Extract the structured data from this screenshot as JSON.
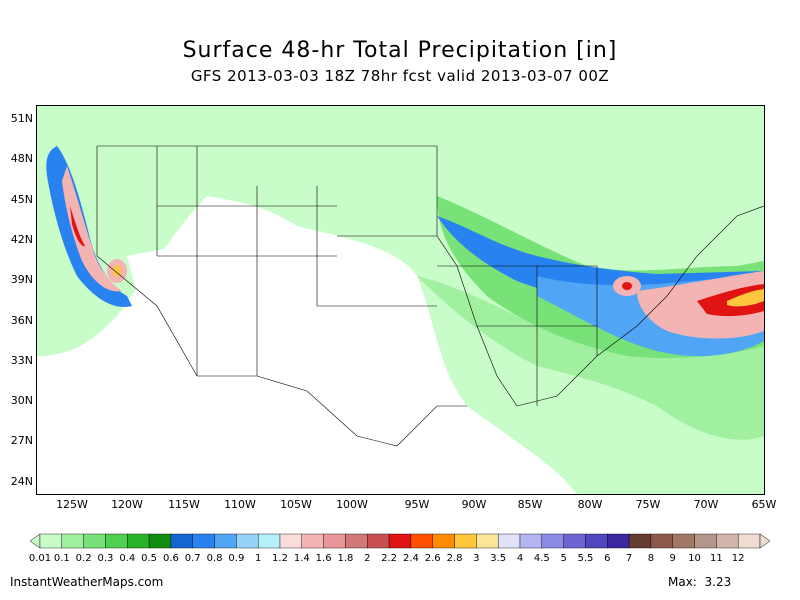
{
  "title": "Surface 48-hr Total Precipitation [in]",
  "subtitle": "GFS 2013-03-03 18Z 78hr fcst valid 2013-03-07 00Z",
  "lat_labels": [
    "51N",
    "48N",
    "45N",
    "42N",
    "39N",
    "36N",
    "33N",
    "30N",
    "27N",
    "24N"
  ],
  "lon_labels": [
    "125W",
    "120W",
    "115W",
    "110W",
    "105W",
    "100W",
    "95W",
    "90W",
    "85W",
    "80W",
    "75W",
    "70W",
    "65W"
  ],
  "colorbar": {
    "labels": [
      "0.01",
      "0.1",
      "0.2",
      "0.3",
      "0.4",
      "0.5",
      "0.6",
      "0.7",
      "0.8",
      "0.9",
      "1",
      "1.2",
      "1.4",
      "1.6",
      "1.8",
      "2",
      "2.2",
      "2.4",
      "2.6",
      "2.8",
      "3",
      "3.5",
      "4",
      "4.5",
      "5",
      "5.5",
      "6",
      "7",
      "8",
      "9",
      "10",
      "11",
      "12"
    ],
    "colors": [
      "#c8fcc8",
      "#a0f0a0",
      "#78e278",
      "#50d050",
      "#28b428",
      "#108c10",
      "#1464d2",
      "#2882f0",
      "#50a5f5",
      "#96d2fa",
      "#b4f0fa",
      "#fadcdc",
      "#f5b4b4",
      "#e69696",
      "#d27878",
      "#c85050",
      "#e11414",
      "#ff5000",
      "#ff8c00",
      "#ffc83c",
      "#fae696",
      "#e1e1fa",
      "#b4b4f0",
      "#8c8ce6",
      "#6e64d2",
      "#5046be",
      "#3c28a0",
      "#643c32",
      "#8c5a4b",
      "#a07864",
      "#b4968c",
      "#d2b4aa",
      "#f0dcd2"
    ]
  },
  "footer": {
    "source": "InstantWeatherMaps.com",
    "max_label": "Max:",
    "max_value": "3.23"
  }
}
